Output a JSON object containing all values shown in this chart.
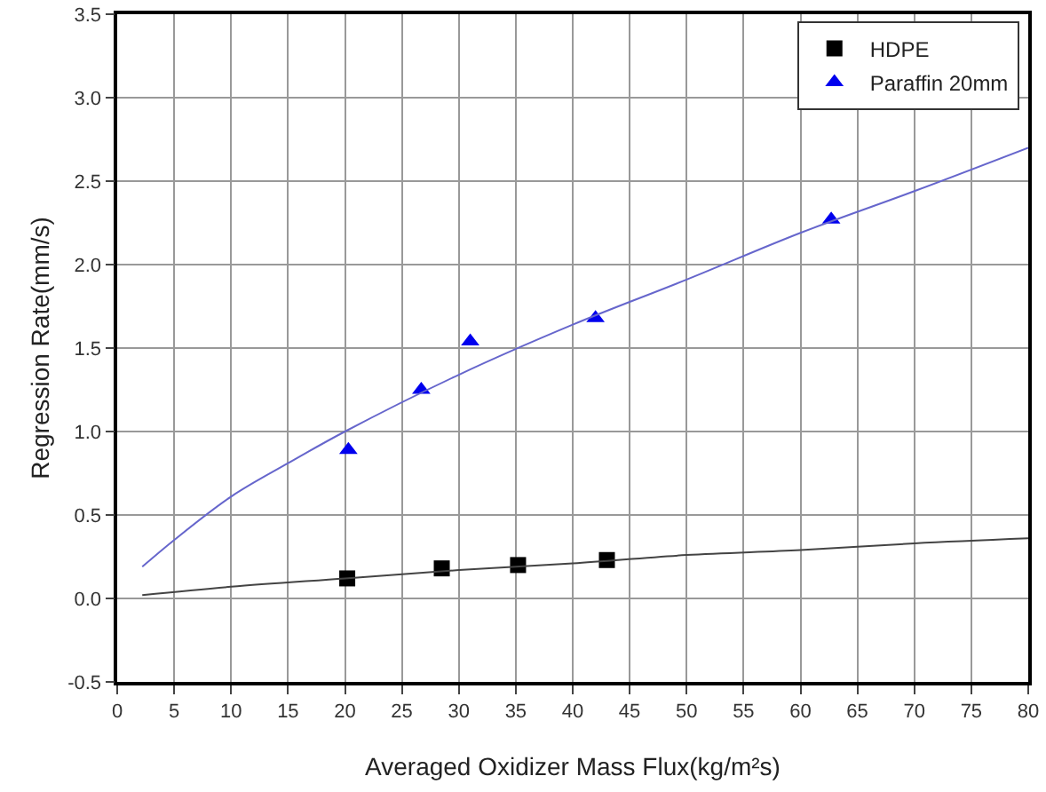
{
  "chart_data": {
    "type": "scatter",
    "xlabel": "Averaged Oxidizer Mass Flux(kg/m²s)",
    "ylabel": "Regression Rate(mm/s)",
    "xlim": [
      0,
      80
    ],
    "xticks": [
      0,
      5,
      10,
      15,
      20,
      25,
      30,
      35,
      40,
      45,
      50,
      55,
      60,
      65,
      70,
      75,
      80
    ],
    "ylim": [
      -0.5,
      3.5
    ],
    "yticks": [
      {
        "value": -0.5,
        "label": "-0.5"
      },
      {
        "value": 0,
        "label": "0.0"
      },
      {
        "value": 0.5,
        "label": "0.5"
      },
      {
        "value": 1,
        "label": "1.0"
      },
      {
        "value": 1.5,
        "label": "1.5"
      },
      {
        "value": 2,
        "label": "2.0"
      },
      {
        "value": 2.5,
        "label": "2.5"
      },
      {
        "value": 3,
        "label": "3.0"
      },
      {
        "value": 3.5,
        "label": "3.5"
      }
    ],
    "grid": true,
    "legend": "top right",
    "series": [
      {
        "name": "HDPE",
        "color": "#000000",
        "marker": "square",
        "x": [
          20.2,
          28.5,
          35.2,
          43
        ],
        "values": [
          0.12,
          0.18,
          0.2,
          0.23
        ]
      },
      {
        "name": "Paraffin 20mm",
        "color": "#0000ee",
        "marker": "triangle",
        "x": [
          20.3,
          26.7,
          31,
          42,
          62.7
        ],
        "values": [
          0.89,
          1.25,
          1.54,
          1.68,
          2.27
        ]
      },
      {
        "type": "line",
        "color": "#444444",
        "x": [
          2.2,
          10,
          20,
          30,
          40,
          50,
          60,
          70,
          80
        ],
        "values": [
          0.02,
          0.07,
          0.12,
          0.17,
          0.21,
          0.26,
          0.29,
          0.33,
          0.36
        ]
      },
      {
        "type": "line",
        "color": "#6666cc",
        "x": [
          2.2,
          5,
          10,
          15,
          20,
          30,
          40,
          50,
          60,
          70,
          80
        ],
        "values": [
          0.19,
          0.35,
          0.61,
          0.81,
          1.0,
          1.34,
          1.64,
          1.91,
          2.19,
          2.44,
          2.7
        ]
      }
    ]
  }
}
